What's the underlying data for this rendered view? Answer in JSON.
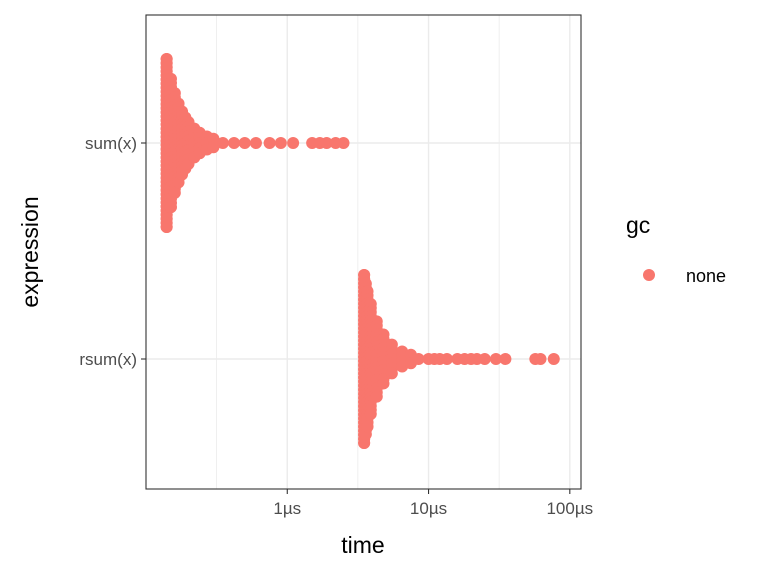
{
  "chart_data": {
    "type": "scatter",
    "title": "",
    "xlabel": "time",
    "ylabel": "expression",
    "x_scale": "log10",
    "x_unit": "µs",
    "xlim": [
      0.1,
      120
    ],
    "x_ticks": [
      {
        "value": 1,
        "label": "1µs"
      },
      {
        "value": 10,
        "label": "10µs"
      },
      {
        "value": 100,
        "label": "100µs"
      }
    ],
    "categories": [
      "sum(x)",
      "rsum(x)"
    ],
    "grid": true,
    "legend": {
      "title": "gc",
      "placement": "right",
      "entries": [
        {
          "label": "none",
          "color": "#F8766D"
        }
      ]
    },
    "series": [
      {
        "name": "none",
        "color": "#F8766D",
        "points": [
          {
            "category": "sum(x)",
            "time_us": [
              0.14,
              0.14,
              0.15,
              0.15,
              0.16,
              0.17,
              0.18,
              0.19,
              0.2,
              0.22,
              0.24,
              0.27,
              0.3,
              0.35,
              0.42,
              0.5,
              0.6,
              0.75,
              0.9,
              1.1,
              1.5,
              1.7,
              1.9,
              2.2,
              2.5
            ]
          },
          {
            "category": "rsum(x)",
            "time_us": [
              3.5,
              3.5,
              3.6,
              3.7,
              3.9,
              4.3,
              4.8,
              5.5,
              6.5,
              7.5,
              8.5,
              10,
              11,
              12,
              13.5,
              16,
              18,
              20,
              22,
              25,
              30,
              35,
              57,
              62,
              77
            ]
          }
        ]
      }
    ]
  }
}
